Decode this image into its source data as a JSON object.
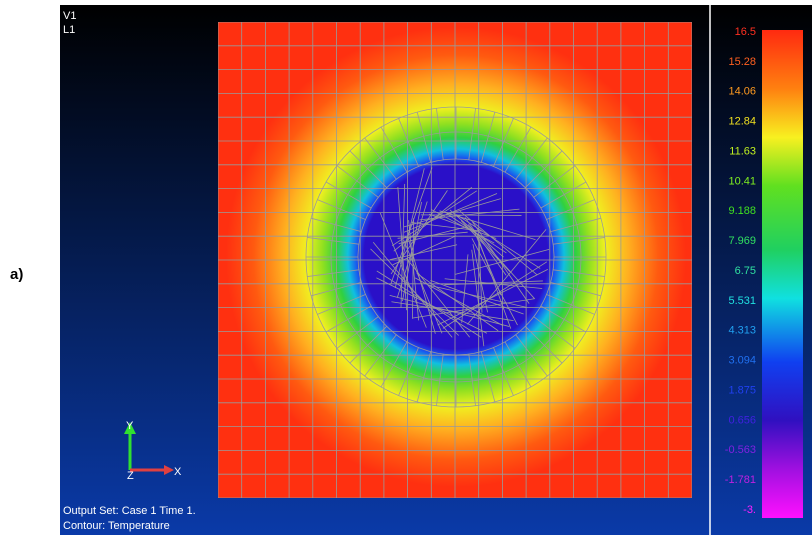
{
  "figure_label": "a)",
  "viewport": {
    "view": "V1",
    "layer": "L1",
    "axes": {
      "y": "Y",
      "z": "Z",
      "x": "X"
    },
    "output_set": "Output Set: Case 1 Time 1.",
    "contour": "Contour: Temperature"
  },
  "legend": {
    "labels": [
      "16.5",
      "15.28",
      "14.06",
      "12.84",
      "11.63",
      "10.41",
      "9.188",
      "7.969",
      "6.75",
      "5.531",
      "4.313",
      "3.094",
      "1.875",
      "0.656",
      "-0.563",
      "-1.781",
      "-3."
    ]
  }
}
